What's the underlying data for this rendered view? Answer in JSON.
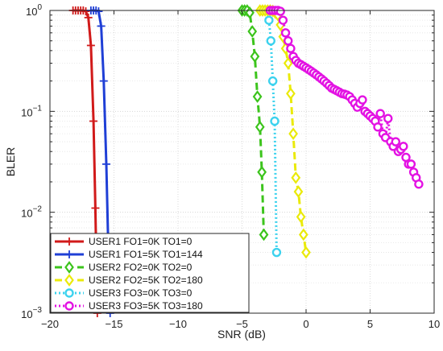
{
  "chart_data": {
    "type": "line",
    "title": "",
    "xlabel": "SNR (dB)",
    "ylabel": "BLER",
    "xlim": [
      -20,
      10
    ],
    "ylim": [
      0.001,
      1
    ],
    "yscale": "log",
    "grid": true,
    "legend_position": "bottom-left",
    "x_ticks": [
      {
        "value": -20,
        "label": "−20"
      },
      {
        "value": -15,
        "label": "−15"
      },
      {
        "value": -10,
        "label": "−10"
      },
      {
        "value": -5,
        "label": "−5"
      },
      {
        "value": 0,
        "label": "0"
      },
      {
        "value": 5,
        "label": "5"
      },
      {
        "value": 10,
        "label": "10"
      }
    ],
    "y_ticks": [
      {
        "value": 1,
        "base": "10",
        "exp": "0"
      },
      {
        "value": 0.1,
        "base": "10",
        "exp": "−1"
      },
      {
        "value": 0.01,
        "base": "10",
        "exp": "−2"
      },
      {
        "value": 0.001,
        "base": "10",
        "exp": "−3"
      }
    ],
    "series": [
      {
        "name": "USER1 FO1=0K TO1=0",
        "color": "#d11a1a",
        "dash": "solid",
        "marker": "plus",
        "x": [
          -18.2,
          -18.0,
          -17.8,
          -17.6,
          -17.4,
          -17.2,
          -17.0,
          -16.8,
          -16.6,
          -16.45,
          -16.3
        ],
        "y": [
          1.0,
          1.0,
          1.0,
          1.0,
          1.0,
          0.98,
          0.85,
          0.45,
          0.08,
          0.011,
          0.001
        ]
      },
      {
        "name": "USER1 FO1=5K TO1=144",
        "color": "#1f3fd6",
        "dash": "solid",
        "marker": "plus",
        "x": [
          -16.8,
          -16.6,
          -16.4,
          -16.2,
          -16.0,
          -15.8,
          -15.6,
          -15.45,
          -15.3
        ],
        "y": [
          1.0,
          1.0,
          1.0,
          0.98,
          0.7,
          0.2,
          0.03,
          0.005,
          0.001
        ]
      },
      {
        "name": "USER2 FO2=0K TO2=0",
        "color": "#3cc41c",
        "dash": "dash",
        "marker": "diamond",
        "x": [
          -5.0,
          -4.8,
          -4.6,
          -4.4,
          -4.2,
          -4.0,
          -3.8,
          -3.6,
          -3.45,
          -3.3
        ],
        "y": [
          1.0,
          1.0,
          1.0,
          0.95,
          0.62,
          0.35,
          0.14,
          0.07,
          0.025,
          0.006
        ]
      },
      {
        "name": "USER2 FO2=5K TO2=180",
        "color": "#eaea0a",
        "dash": "dash",
        "marker": "diamond",
        "x": [
          -3.6,
          -3.4,
          -3.2,
          -3.0,
          -2.8,
          -2.6,
          -2.4,
          -2.2,
          -2.0,
          -1.8,
          -1.6,
          -1.4,
          -1.2,
          -1.0,
          -0.8,
          -0.6,
          -0.4,
          -0.2,
          0.0
        ],
        "y": [
          1.0,
          1.0,
          1.0,
          1.0,
          1.0,
          0.99,
          0.95,
          0.9,
          0.72,
          0.55,
          0.42,
          0.3,
          0.15,
          0.06,
          0.022,
          0.016,
          0.009,
          0.006,
          0.004
        ]
      },
      {
        "name": "USER3 FO3=0K TO3=0",
        "color": "#3cd2ee",
        "dash": "dot",
        "marker": "circle",
        "x": [
          -2.9,
          -2.75,
          -2.6,
          -2.45,
          -2.3
        ],
        "y": [
          0.8,
          0.5,
          0.2,
          0.08,
          0.004
        ]
      },
      {
        "name": "USER3 FO3=5K TO3=180",
        "color": "#e312e3",
        "dash": "dot",
        "marker": "circle",
        "x": [
          -2.8,
          -2.6,
          -2.4,
          -2.2,
          -2.0,
          -1.8,
          -1.6,
          -1.4,
          -1.2,
          -1.0,
          -0.8,
          -0.6,
          -0.4,
          -0.2,
          0.0,
          0.2,
          0.4,
          0.6,
          0.8,
          1.0,
          1.2,
          1.4,
          1.6,
          1.8,
          2.0,
          2.2,
          2.4,
          2.6,
          2.8,
          3.0,
          3.2,
          3.4,
          3.6,
          3.8,
          4.0,
          4.2,
          4.4,
          4.6,
          4.8,
          5.0,
          5.2,
          5.4,
          5.6,
          5.8,
          6.0,
          6.2,
          6.4,
          6.6,
          6.8,
          7.0,
          7.2,
          7.4,
          7.6,
          7.8,
          8.0,
          8.2,
          8.4,
          8.6,
          8.8
        ],
        "y": [
          1.0,
          1.0,
          1.0,
          1.0,
          0.98,
          0.8,
          0.6,
          0.5,
          0.42,
          0.35,
          0.32,
          0.3,
          0.29,
          0.28,
          0.27,
          0.26,
          0.25,
          0.24,
          0.23,
          0.22,
          0.21,
          0.2,
          0.19,
          0.18,
          0.17,
          0.165,
          0.16,
          0.155,
          0.15,
          0.148,
          0.145,
          0.14,
          0.13,
          0.12,
          0.11,
          0.12,
          0.13,
          0.1,
          0.095,
          0.09,
          0.085,
          0.08,
          0.07,
          0.095,
          0.06,
          0.055,
          0.085,
          0.05,
          0.045,
          0.05,
          0.04,
          0.042,
          0.045,
          0.035,
          0.03,
          0.03,
          0.025,
          0.022,
          0.019
        ]
      }
    ]
  }
}
